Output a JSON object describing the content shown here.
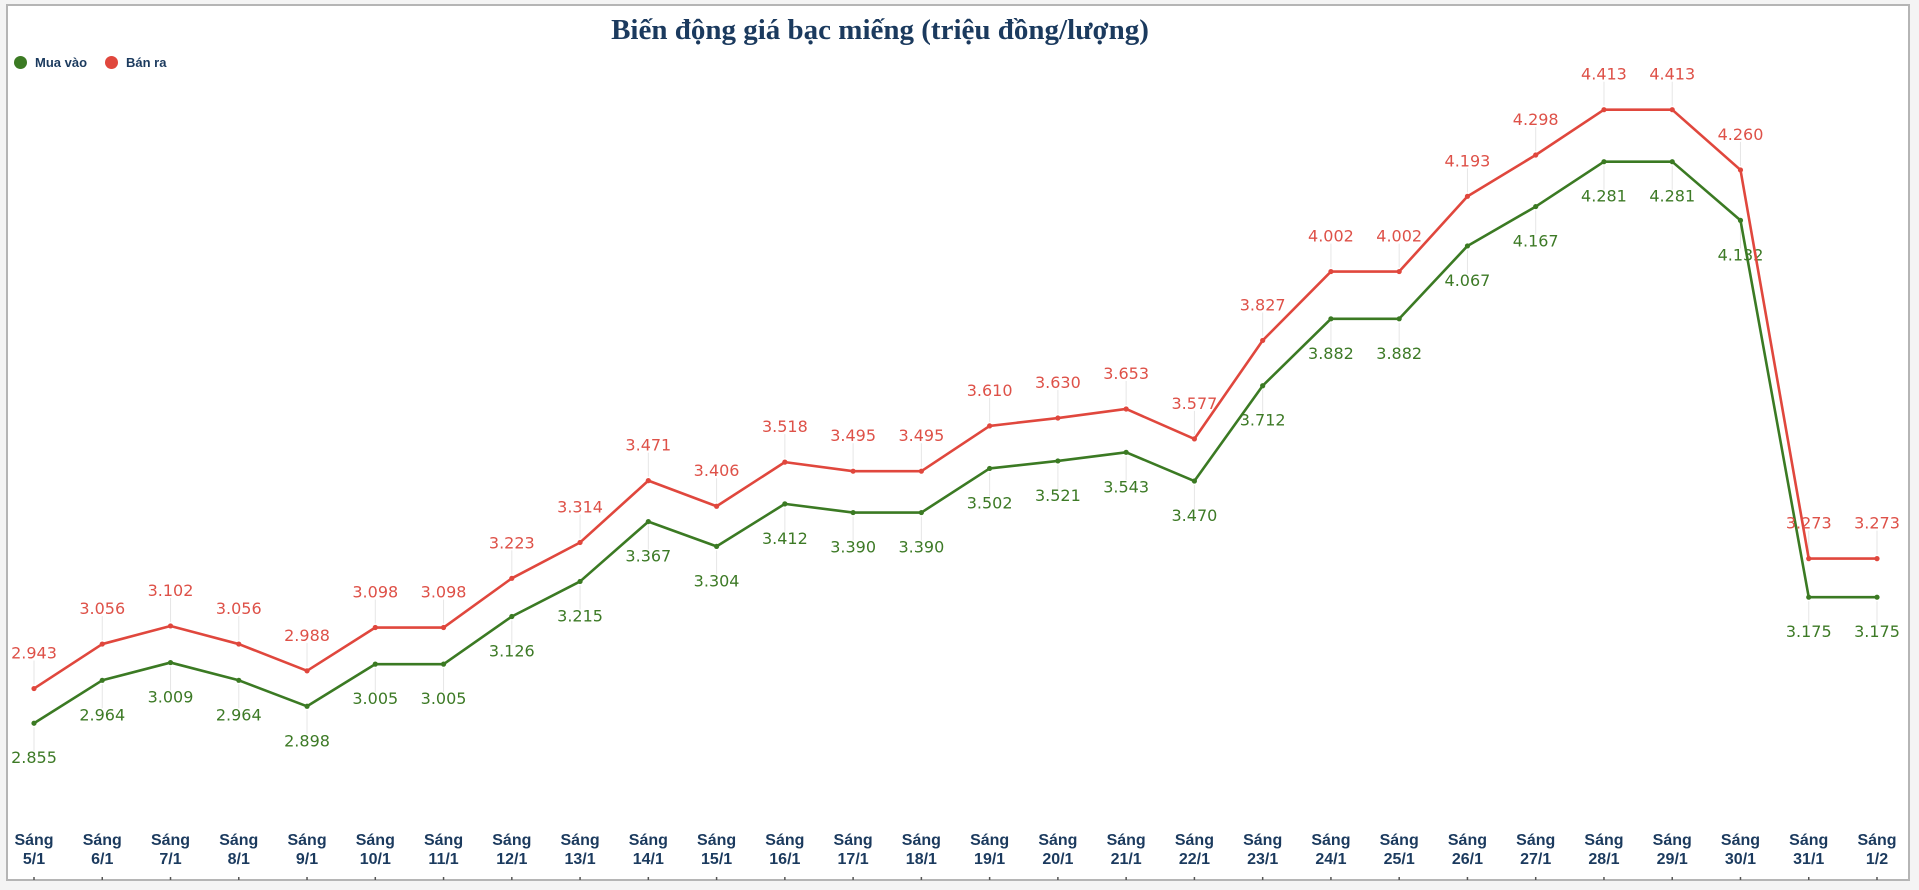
{
  "chart_data": {
    "type": "line",
    "title": "Biến động giá bạc miếng (triệu đồng/lượng)",
    "categories": [
      "Sáng 5/1",
      "Sáng 6/1",
      "Sáng 7/1",
      "Sáng 8/1",
      "Sáng 9/1",
      "Sáng 10/1",
      "Sáng 11/1",
      "Sáng 12/1",
      "Sáng 13/1",
      "Sáng 14/1",
      "Sáng 15/1",
      "Sáng 16/1",
      "Sáng 17/1",
      "Sáng 18/1",
      "Sáng 19/1",
      "Sáng 20/1",
      "Sáng 21/1",
      "Sáng 22/1",
      "Sáng 23/1",
      "Sáng 24/1",
      "Sáng 25/1",
      "Sáng 26/1",
      "Sáng 27/1",
      "Sáng 28/1",
      "Sáng 29/1",
      "Sáng 30/1",
      "Sáng 31/1",
      "Sáng 1/2"
    ],
    "series": [
      {
        "name": "Mua vào",
        "color": "#3b7a23",
        "label_position": "below",
        "values": [
          2.855,
          2.964,
          3.009,
          2.964,
          2.898,
          3.005,
          3.005,
          3.126,
          3.215,
          3.367,
          3.304,
          3.412,
          3.39,
          3.39,
          3.502,
          3.521,
          3.543,
          3.47,
          3.712,
          3.882,
          3.882,
          4.067,
          4.167,
          4.281,
          4.281,
          4.132,
          3.175,
          3.175
        ]
      },
      {
        "name": "Bán ra",
        "color": "#e0473d",
        "label_position": "above",
        "values": [
          2.943,
          3.056,
          3.102,
          3.056,
          2.988,
          3.098,
          3.098,
          3.223,
          3.314,
          3.471,
          3.406,
          3.518,
          3.495,
          3.495,
          3.61,
          3.63,
          3.653,
          3.577,
          3.827,
          4.002,
          4.002,
          4.193,
          4.298,
          4.413,
          4.413,
          4.26,
          3.273,
          3.273
        ]
      }
    ],
    "ylim": [
      2.66,
      4.59
    ],
    "grid": false,
    "legend_position": "top-left",
    "xlabel": "",
    "ylabel": ""
  }
}
